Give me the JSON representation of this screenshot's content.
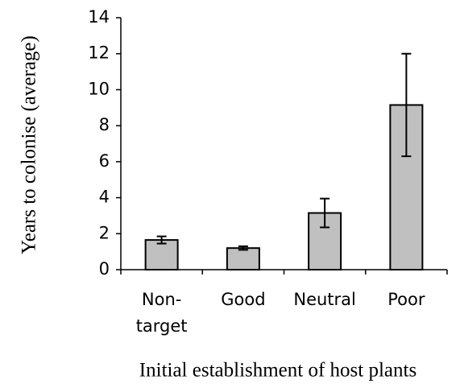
{
  "chart_data": {
    "type": "bar",
    "x_label": "Initial establishment of host plants",
    "y_label": "Years to colonise (average)",
    "categories": [
      "Non-target",
      "Good",
      "Neutral",
      "Poor"
    ],
    "values": [
      1.65,
      1.2,
      3.15,
      9.15
    ],
    "errors": [
      0.2,
      0.1,
      0.8,
      2.85
    ],
    "color": "#c0c0c0",
    "ylim": [
      0,
      14
    ],
    "yticks": [
      0,
      2,
      4,
      6,
      8,
      10,
      12,
      14
    ],
    "grid": false
  }
}
